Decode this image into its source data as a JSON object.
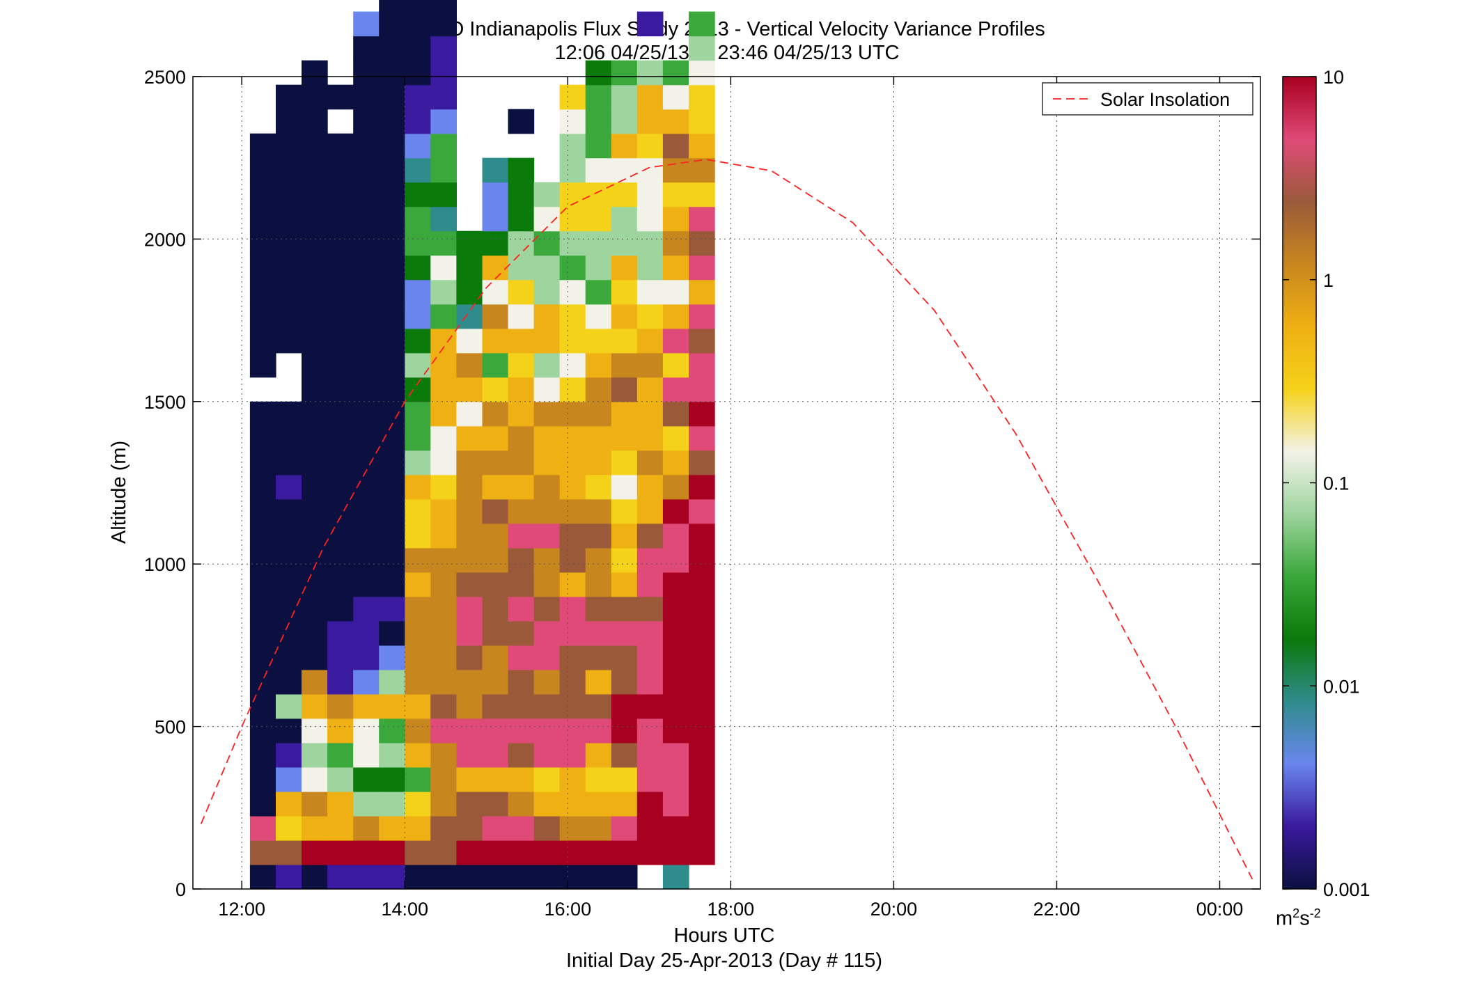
{
  "figure": {
    "title_line1": "HALO Indianapolis Flux Study 2013 - Vertical Velocity Variance Profiles",
    "title_line2": "12:06 04/25/13 to 23:46 04/25/13  UTC",
    "xlabel": "Hours UTC",
    "xlabel2": "Initial Day 25-Apr-2013 (Day # 115)",
    "ylabel": "Altitude (m)",
    "colorbar_unit_base": "m",
    "colorbar_unit_sup1": "2",
    "colorbar_unit_mid": "s",
    "colorbar_unit_sup2": "-2",
    "legend_label": "Solar Insolation"
  },
  "chart_data": {
    "type": "heatmap",
    "x_unit": "hours UTC",
    "y_unit": "m",
    "xlim": [
      11.4,
      24.5
    ],
    "ylim": [
      0,
      2500
    ],
    "x_ticks": [
      12,
      14,
      16,
      18,
      20,
      22,
      24
    ],
    "x_tick_labels": [
      "12:00",
      "14:00",
      "16:00",
      "18:00",
      "20:00",
      "22:00",
      "00:00"
    ],
    "y_ticks": [
      0,
      500,
      1000,
      1500,
      2000,
      2500
    ],
    "y_tick_labels": [
      "0",
      "500",
      "1000",
      "1500",
      "2000",
      "2500"
    ],
    "grid": true,
    "legend_position": "top-right",
    "colorbar": {
      "scale": "log",
      "range": [
        0.001,
        10
      ],
      "ticks": [
        0.001,
        0.01,
        0.1,
        1,
        10
      ],
      "tick_labels": [
        "0.001",
        "0.01",
        "0.1",
        "1",
        "10"
      ],
      "colors": [
        "#0b1040",
        "#3a1a9e",
        "#6a86ee",
        "#2e8c8c",
        "#0a7a0a",
        "#3aa83a",
        "#9ed49e",
        "#f2f2e8",
        "#f5d21a",
        "#eeb012",
        "#c8861e",
        "#9a5a3a",
        "#e04a78",
        "#a80020"
      ]
    },
    "solar_insolation": {
      "name": "Solar Insolation",
      "color": "#ff2020",
      "style": "dashed",
      "x": [
        11.5,
        12.0,
        13.0,
        14.0,
        15.0,
        16.0,
        17.0,
        17.7,
        18.5,
        19.5,
        20.5,
        21.5,
        22.5,
        23.5,
        24.4
      ],
      "y": [
        200,
        500,
        1050,
        1500,
        1850,
        2100,
        2220,
        2245,
        2210,
        2050,
        1780,
        1400,
        950,
        480,
        30
      ]
    },
    "time_start": 12.1,
    "time_step": 0.3167,
    "alt_step": 75,
    "alt_start_m": 37.5,
    "value_levels_log10": [
      -3.0,
      -2.6,
      -2.3,
      -2.1,
      -1.8,
      -1.5,
      -1.2,
      -0.95,
      -0.6,
      -0.4,
      -0.15,
      0.2,
      0.55,
      0.9
    ],
    "columns_level_index_bottom_to_top": [
      "0,11,12,0,0,0,0,0,0,0,0,0,0,0,0,0,0,0,0,0,-,0,0,0,0,0,0,0,0,0,0,-,-,-,-,-,-,-,-,-,-,-,-,-,-,-",
      "1,11,8,9,2,1,0,6,0,0,0,0,0,0,0,0,1,0,0,0,-,-,0,0,0,0,0,0,0,0,0,0,0,-,-,-,-,-,-,-,-,-,-,-,-,-",
      "0,13,9,10,7,6,7,9,10,0,0,0,0,0,0,0,0,0,0,0,0,0,0,0,0,0,0,0,0,0,0,0,0,0,-,-,-,-,-,-,-,-,-,-,-,-",
      "1,13,9,9,6,5,9,10,1,1,1,0,0,0,0,0,0,0,0,0,0,0,0,0,0,0,0,0,0,0,0,-,0,-,-,-,-,-,-,-,-,-,-,-,5,-",
      "1,13,10,6,4,7,7,9,2,1,1,1,0,0,0,0,0,0,0,0,0,0,0,0,0,0,0,0,0,0,0,0,0,0,0,2,-,-,-,-,-,-,-,-,-,-",
      "1,13,9,6,4,6,5,9,6,2,0,1,0,0,0,0,0,0,0,0,0,0,0,0,0,0,0,0,0,0,0,0,0,0,0,0,0,0,5,0,-,-,-,-,-,-",
      "0,11,9,8,5,9,10,9,10,10,10,10,9,10,8,8,9,6,5,5,4,6,4,2,2,4,5,5,4,3,2,1,1,0,0,0,0,0,0,-,-,-,-,-,-,-",
      "0,11,11,10,10,10,12,11,10,10,10,10,10,10,9,9,8,7,7,9,9,9,9,5,6,7,5,3,4,5,5,2,1,1,1,0,0,0,0,0,0,-,-,-,-,-",
      "0,13,11,11,9,12,12,10,10,11,12,12,11,10,10,10,10,10,9,7,9,10,7,3,4,4,4,-,-,-,-,-,-,-,-,-,-,-,-,-,-,-,-,-,-,-",
      "0,13,12,11,9,12,12,11,10,10,11,11,11,10,10,11,9,10,9,10,8,5,9,10,7,9,4,2,2,3,-,-,-,-,-,-,-,-,-,-,-,-,-,-,-,-",
      "0,13,12,10,9,11,12,11,11,12,11,12,11,11,12,10,9,10,10,9,9,8,9,7,8,6,6,4,4,4,-,0,-,-,-,-,-,-,-,-,-,-,-,-,-,-",
      "0,13,11,9,8,12,12,11,10,12,12,11,10,10,12,10,10,9,9,10,7,6,9,9,6,6,5,7,6,-,-,-,-,-,-,-,-,-,-,-,-,-,-,-,-,-",
      "0,13,10,9,9,12,12,11,11,11,12,12,9,11,11,10,9,9,9,10,8,7,8,8,7,5,6,8,8,6,6,7,8,-,-,-,-,-,-,-,-,-,-,-,-,-",
      "0,13,10,9,8,9,12,11,9,11,12,11,10,10,11,10,8,9,9,10,10,9,8,7,5,6,6,8,8,7,5,5,5,4,-,-,-,-,-,-,-,-,-,-,-,-",
      "0,13,12,9,8,11,13,13,11,11,12,11,9,8,9,8,7,8,9,9,11,10,8,9,8,9,6,6,8,7,9,6,6,5,-,-,-,-,-,-,-,-,-,-,-,-",
      "-,13,13,13,12,12,12,13,12,12,12,11,12,12,11,9,9,10,9,9,9,10,9,8,7,6,6,7,7,7,8,9,9,6,-,1,-,-,-,-,-,-,-,-,-,-",
      "3,13,13,12,12,12,13,13,13,13,13,13,13,12,12,13,10,9,8,11,12,8,12,9,7,9,10,9,8,10,11,9,7,5,-,-,-,-,-,-,-,-,-,-,-,-",
      "-,13,13,13,13,13,13,13,13,13,13,13,13,13,13,12,13,11,12,13,12,12,11,12,9,12,11,12,8,10,9,8,8,7,6,5,-,-,-,-,-,-,-,-,-,-"
    ]
  }
}
